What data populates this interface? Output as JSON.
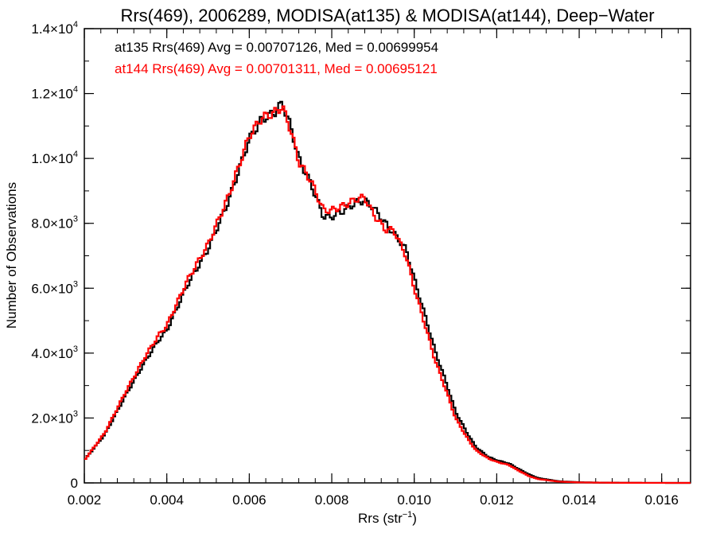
{
  "chart_data": {
    "type": "line",
    "title": "Rrs(469), 2006289, MODISA(at135) & MODISA(at144), Deep−Water",
    "xlabel_main": "Rrs (str",
    "xlabel_sup": "−1",
    "xlabel_close": ")",
    "ylabel": "Number of Observations",
    "xlim": [
      0.002,
      0.0167
    ],
    "ylim": [
      0,
      14000
    ],
    "x_ticks": [
      {
        "value": 0.002,
        "label": "0.002"
      },
      {
        "value": 0.004,
        "label": "0.004"
      },
      {
        "value": 0.006,
        "label": "0.006"
      },
      {
        "value": 0.008,
        "label": "0.008"
      },
      {
        "value": 0.01,
        "label": "0.010"
      },
      {
        "value": 0.012,
        "label": "0.012"
      },
      {
        "value": 0.014,
        "label": "0.014"
      },
      {
        "value": 0.016,
        "label": "0.016"
      }
    ],
    "y_ticks": [
      {
        "value": 0,
        "mantissa": "0",
        "exp": ""
      },
      {
        "value": 2000,
        "mantissa": "2.0×10",
        "exp": "3"
      },
      {
        "value": 4000,
        "mantissa": "4.0×10",
        "exp": "3"
      },
      {
        "value": 6000,
        "mantissa": "6.0×10",
        "exp": "3"
      },
      {
        "value": 8000,
        "mantissa": "8.0×10",
        "exp": "3"
      },
      {
        "value": 10000,
        "mantissa": "1.0×10",
        "exp": "4"
      },
      {
        "value": 12000,
        "mantissa": "1.2×10",
        "exp": "4"
      },
      {
        "value": 14000,
        "mantissa": "1.4×10",
        "exp": "4"
      }
    ],
    "annotations": [
      {
        "text": "at135 Rrs(469) Avg = 0.00707126, Med = 0.00699954",
        "color": "#000000"
      },
      {
        "text": "at144 Rrs(469) Avg = 0.00701311, Med = 0.00695121",
        "color": "#ff0000"
      }
    ],
    "series": [
      {
        "color": "#000000",
        "x": [
          0.002,
          0.0025,
          0.003,
          0.0035,
          0.0038,
          0.004,
          0.0045,
          0.005,
          0.0055,
          0.006,
          0.0063,
          0.0066,
          0.0068,
          0.007,
          0.0072,
          0.0075,
          0.0078,
          0.008,
          0.0083,
          0.0086,
          0.0088,
          0.009,
          0.0093,
          0.0095,
          0.0098,
          0.01,
          0.0103,
          0.0105,
          0.0108,
          0.011,
          0.0113,
          0.0115,
          0.0118,
          0.012,
          0.0123,
          0.0125,
          0.0128,
          0.013,
          0.0135,
          0.014,
          0.0145,
          0.015,
          0.0155,
          0.016,
          0.0167
        ],
        "y": [
          700,
          1500,
          2700,
          3800,
          4400,
          4700,
          6100,
          7200,
          8700,
          10600,
          11200,
          11400,
          11700,
          11000,
          10000,
          9200,
          8200,
          8200,
          8400,
          8650,
          8700,
          8500,
          8000,
          7700,
          7200,
          6300,
          5000,
          4100,
          3000,
          2200,
          1500,
          1100,
          800,
          700,
          600,
          450,
          250,
          150,
          50,
          20,
          10,
          5,
          2,
          1,
          0
        ]
      },
      {
        "color": "#ff0000",
        "x": [
          0.002,
          0.0025,
          0.003,
          0.0035,
          0.0038,
          0.004,
          0.0045,
          0.005,
          0.0055,
          0.006,
          0.0063,
          0.0066,
          0.0068,
          0.007,
          0.0072,
          0.0075,
          0.0078,
          0.008,
          0.0083,
          0.0086,
          0.0088,
          0.009,
          0.0093,
          0.0095,
          0.0098,
          0.01,
          0.0103,
          0.0105,
          0.0108,
          0.011,
          0.0113,
          0.0115,
          0.0118,
          0.012,
          0.0123,
          0.0125,
          0.0128,
          0.013,
          0.0135,
          0.014,
          0.0145,
          0.015,
          0.0155,
          0.016,
          0.0167
        ],
        "y": [
          700,
          1550,
          2800,
          3950,
          4550,
          4850,
          6250,
          7350,
          8850,
          10700,
          11250,
          11400,
          11600,
          10900,
          9900,
          9300,
          8400,
          8400,
          8550,
          8750,
          8800,
          8300,
          7800,
          7800,
          7000,
          6000,
          4700,
          3800,
          2750,
          2000,
          1350,
          1000,
          750,
          650,
          550,
          400,
          200,
          120,
          40,
          15,
          8,
          4,
          2,
          1,
          0
        ]
      }
    ]
  }
}
